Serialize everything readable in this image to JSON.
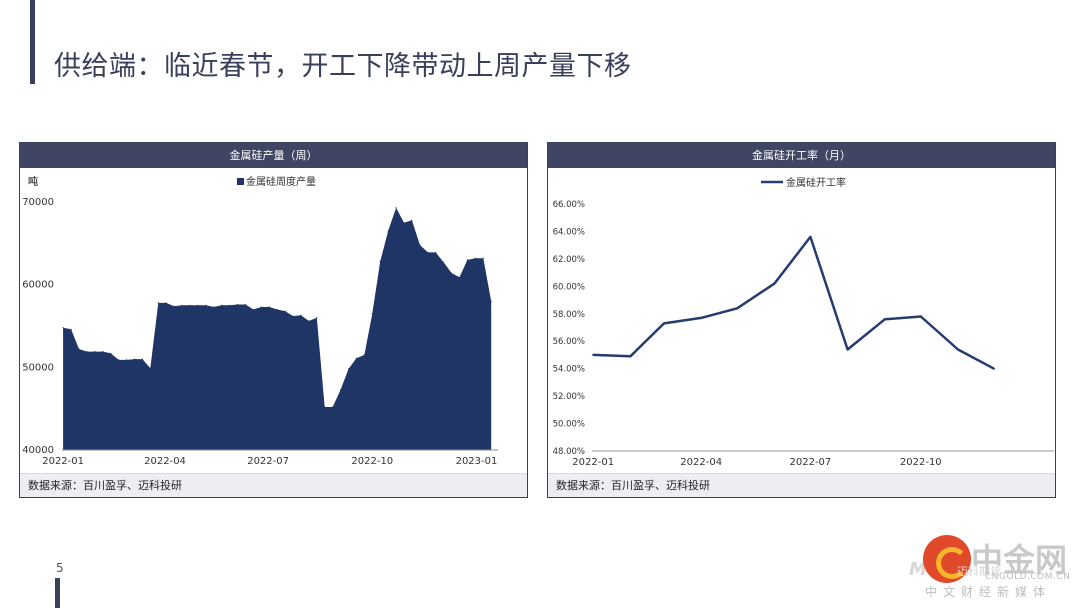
{
  "page": {
    "title": "供给端：临近春节，开工下降带动上周产量下移",
    "page_number": "5"
  },
  "logo": {
    "name_cn": "中金网",
    "faint_text": "Mvste",
    "faint_text2": "迈科期货",
    "url": "CNGOLD.COM.CN",
    "tagline": "中文财经新媒体"
  },
  "left_panel": {
    "header": "金属硅产量（周）",
    "footer": "数据来源：百川盈孚、迈科投研"
  },
  "right_panel": {
    "header": "金属硅开工率（月）",
    "footer": "数据来源：百川盈孚、迈科投研"
  },
  "chart_data": [
    {
      "type": "area",
      "unit_label": "吨",
      "legend": "金属硅周度产量",
      "legend_position": "top-center",
      "color": "#1f3566",
      "ylim": [
        40000,
        70000
      ],
      "yticks": [
        40000,
        50000,
        60000,
        70000
      ],
      "x_start": "2021-12-31",
      "x_end": "2023-01-20",
      "xticks": [
        {
          "date": "2022-01-01",
          "label": "2022-01"
        },
        {
          "date": "2022-04-01",
          "label": "2022-04"
        },
        {
          "date": "2022-07-01",
          "label": "2022-07"
        },
        {
          "date": "2022-10-01",
          "label": "2022-10"
        },
        {
          "date": "2023-01-01",
          "label": "2023-01"
        }
      ],
      "series": [
        {
          "points": [
            [
              "2022-01-01",
              54800
            ],
            [
              "2022-01-08",
              54600
            ],
            [
              "2022-01-15",
              52200
            ],
            [
              "2022-01-22",
              51900
            ],
            [
              "2022-01-29",
              51900
            ],
            [
              "2022-02-05",
              51900
            ],
            [
              "2022-02-12",
              51700
            ],
            [
              "2022-02-19",
              50900
            ],
            [
              "2022-02-26",
              50900
            ],
            [
              "2022-03-05",
              51000
            ],
            [
              "2022-03-12",
              51000
            ],
            [
              "2022-03-19",
              49900
            ],
            [
              "2022-03-26",
              57800
            ],
            [
              "2022-04-02",
              57800
            ],
            [
              "2022-04-09",
              57400
            ],
            [
              "2022-04-16",
              57500
            ],
            [
              "2022-04-23",
              57500
            ],
            [
              "2022-04-30",
              57500
            ],
            [
              "2022-05-07",
              57500
            ],
            [
              "2022-05-14",
              57300
            ],
            [
              "2022-05-21",
              57500
            ],
            [
              "2022-05-28",
              57500
            ],
            [
              "2022-06-04",
              57600
            ],
            [
              "2022-06-11",
              57600
            ],
            [
              "2022-06-18",
              57000
            ],
            [
              "2022-06-25",
              57300
            ],
            [
              "2022-07-02",
              57300
            ],
            [
              "2022-07-09",
              57000
            ],
            [
              "2022-07-16",
              56800
            ],
            [
              "2022-07-23",
              56200
            ],
            [
              "2022-07-30",
              56300
            ],
            [
              "2022-08-06",
              55600
            ],
            [
              "2022-08-13",
              56000
            ],
            [
              "2022-08-20",
              45200
            ],
            [
              "2022-08-27",
              45200
            ],
            [
              "2022-09-03",
              47300
            ],
            [
              "2022-09-10",
              49800
            ],
            [
              "2022-09-17",
              51100
            ],
            [
              "2022-09-24",
              51500
            ],
            [
              "2022-10-01",
              56500
            ],
            [
              "2022-10-08",
              62800
            ],
            [
              "2022-10-15",
              66500
            ],
            [
              "2022-10-22",
              69300
            ],
            [
              "2022-10-29",
              67500
            ],
            [
              "2022-11-05",
              67800
            ],
            [
              "2022-11-12",
              64800
            ],
            [
              "2022-11-19",
              63900
            ],
            [
              "2022-11-26",
              63900
            ],
            [
              "2022-12-03",
              62700
            ],
            [
              "2022-12-10",
              61400
            ],
            [
              "2022-12-17",
              60900
            ],
            [
              "2022-12-24",
              63000
            ],
            [
              "2022-12-31",
              63200
            ],
            [
              "2023-01-07",
              63200
            ],
            [
              "2023-01-14",
              58000
            ]
          ]
        }
      ]
    },
    {
      "type": "line",
      "legend": "金属硅开工率",
      "legend_position": "top-center",
      "color": "#263b6e",
      "ylim": [
        48,
        66
      ],
      "yticks": [
        48,
        50,
        52,
        54,
        56,
        58,
        60,
        62,
        64,
        66
      ],
      "ytick_suffix": ".00%",
      "x_start": "2021-12-31",
      "x_end": "2023-01-20",
      "xticks": [
        {
          "date": "2022-01-01",
          "label": "2022-01"
        },
        {
          "date": "2022-04-01",
          "label": "2022-04"
        },
        {
          "date": "2022-07-01",
          "label": "2022-07"
        },
        {
          "date": "2022-10-01",
          "label": "2022-10"
        }
      ],
      "series": [
        {
          "points": [
            [
              "2022-01-01",
              55.0
            ],
            [
              "2022-02-01",
              54.9
            ],
            [
              "2022-03-01",
              57.3
            ],
            [
              "2022-04-01",
              57.7
            ],
            [
              "2022-05-01",
              58.4
            ],
            [
              "2022-06-01",
              60.2
            ],
            [
              "2022-07-01",
              63.6
            ],
            [
              "2022-08-01",
              55.4
            ],
            [
              "2022-09-01",
              57.6
            ],
            [
              "2022-10-01",
              57.8
            ],
            [
              "2022-11-01",
              55.4
            ],
            [
              "2022-12-01",
              54.0
            ]
          ]
        }
      ]
    }
  ]
}
